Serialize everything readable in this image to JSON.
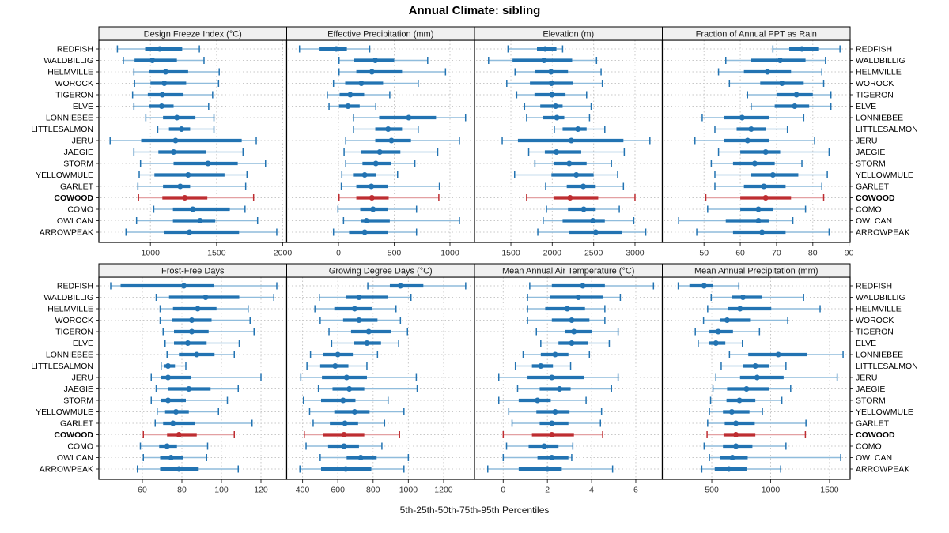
{
  "title": "Annual Climate: sibling",
  "footer": "5th-25th-50th-75th-95th Percentiles",
  "colors": {
    "blue": "#2273B2",
    "blue_light": "#8FBCDC",
    "red": "#BE2D31",
    "red_light": "#E3A0A2",
    "grid": "#C8C8C8",
    "strip_bg": "#F0F0F0",
    "border": "#000000",
    "tick": "#333333",
    "label": "#1A1A1A"
  },
  "chart_data": {
    "type": "trellis-dotplot",
    "percentile_labels": [
      "5th",
      "25th",
      "50th",
      "75th",
      "95th"
    ],
    "highlight_site": "COWOOD",
    "grid": "dotted",
    "sites": [
      "REDFISH",
      "WALDBILLIG",
      "HELMVILLE",
      "WOROCK",
      "TIGERON",
      "ELVE",
      "LONNIEBEE",
      "LITTLESALMON",
      "JERU",
      "JAEGIE",
      "STORM",
      "YELLOWMULE",
      "GARLET",
      "COWOOD",
      "COMO",
      "OWLCAN",
      "ARROWPEAK"
    ],
    "panels": [
      {
        "title": "Design Freeze Index (°C)",
        "row": 0,
        "col": 0,
        "xlim": [
          610,
          2030
        ],
        "ticks": [
          1000,
          1500,
          2000
        ],
        "values": [
          [
            750,
            960,
            1070,
            1240,
            1370
          ],
          [
            795,
            880,
            1015,
            1200,
            1405
          ],
          [
            875,
            990,
            1115,
            1285,
            1520
          ],
          [
            880,
            1000,
            1105,
            1270,
            1515
          ],
          [
            865,
            980,
            1090,
            1250,
            1470
          ],
          [
            875,
            990,
            1085,
            1175,
            1440
          ],
          [
            965,
            1095,
            1200,
            1340,
            1480
          ],
          [
            1055,
            1140,
            1235,
            1300,
            1480
          ],
          [
            695,
            930,
            1190,
            1690,
            1800
          ],
          [
            875,
            1060,
            1175,
            1420,
            1700
          ],
          [
            925,
            1175,
            1435,
            1660,
            1870
          ],
          [
            915,
            1030,
            1285,
            1560,
            1730
          ],
          [
            905,
            1095,
            1225,
            1300,
            1720
          ],
          [
            910,
            1090,
            1260,
            1430,
            1780
          ],
          [
            1025,
            1170,
            1320,
            1600,
            1715
          ],
          [
            895,
            1170,
            1375,
            1490,
            1810
          ],
          [
            815,
            1105,
            1295,
            1670,
            1955
          ]
        ]
      },
      {
        "title": "Effective Precipitation (mm)",
        "row": 0,
        "col": 1,
        "xlim": [
          -465,
          1220
        ],
        "ticks": [
          0,
          500,
          1000
        ],
        "values": [
          [
            -350,
            -170,
            -20,
            75,
            280
          ],
          [
            5,
            135,
            330,
            500,
            800
          ],
          [
            5,
            160,
            300,
            570,
            960
          ],
          [
            -45,
            60,
            205,
            400,
            715
          ],
          [
            -100,
            10,
            105,
            230,
            460
          ],
          [
            -85,
            5,
            85,
            190,
            335
          ],
          [
            135,
            365,
            630,
            875,
            1140
          ],
          [
            135,
            330,
            445,
            570,
            715
          ],
          [
            65,
            330,
            475,
            650,
            1085
          ],
          [
            50,
            200,
            370,
            555,
            890
          ],
          [
            65,
            215,
            335,
            475,
            685
          ],
          [
            30,
            130,
            235,
            340,
            530
          ],
          [
            25,
            160,
            295,
            445,
            905
          ],
          [
            5,
            160,
            300,
            450,
            900
          ],
          [
            -5,
            195,
            310,
            445,
            700
          ],
          [
            45,
            205,
            250,
            460,
            1085
          ],
          [
            -45,
            95,
            235,
            440,
            700
          ]
        ]
      },
      {
        "title": "Elevation (m)",
        "row": 0,
        "col": 2,
        "xlim": [
          1060,
          3330
        ],
        "ticks": [
          1500,
          2000,
          2500,
          3000
        ],
        "values": [
          [
            1465,
            1815,
            1915,
            2050,
            2125
          ],
          [
            1230,
            1520,
            1900,
            2240,
            2535
          ],
          [
            1550,
            1795,
            1985,
            2190,
            2590
          ],
          [
            1450,
            1730,
            1990,
            2250,
            2605
          ],
          [
            1570,
            1785,
            1995,
            2160,
            2415
          ],
          [
            1665,
            1855,
            2040,
            2125,
            2470
          ],
          [
            1690,
            1890,
            2055,
            2145,
            2450
          ],
          [
            2025,
            2125,
            2310,
            2415,
            2635
          ],
          [
            1395,
            1585,
            2230,
            2860,
            3180
          ],
          [
            1715,
            1910,
            2050,
            2350,
            2870
          ],
          [
            1790,
            2015,
            2205,
            2415,
            2715
          ],
          [
            1545,
            1990,
            2290,
            2500,
            2790
          ],
          [
            1920,
            2175,
            2375,
            2525,
            2860
          ],
          [
            1690,
            2015,
            2215,
            2555,
            3000
          ],
          [
            1930,
            2190,
            2380,
            2525,
            2810
          ],
          [
            1890,
            2125,
            2490,
            2635,
            2985
          ],
          [
            1825,
            2205,
            2525,
            2845,
            3130
          ]
        ]
      },
      {
        "title": "Fraction of Annual PPT as Rain",
        "row": 0,
        "col": 3,
        "xlim": [
          38.5,
          90.3
        ],
        "ticks": [
          50,
          60,
          70,
          80,
          90
        ],
        "values": [
          [
            69,
            73.5,
            77,
            81.5,
            87.5
          ],
          [
            56,
            63,
            71,
            78,
            83.5
          ],
          [
            54,
            61,
            67.5,
            74,
            82.5
          ],
          [
            57,
            65.5,
            71.5,
            77.5,
            83
          ],
          [
            62,
            70,
            75.5,
            80,
            85
          ],
          [
            63,
            69.5,
            75,
            79,
            85
          ],
          [
            49.5,
            55.5,
            60.5,
            68,
            77.5
          ],
          [
            53,
            59,
            63,
            67,
            73
          ],
          [
            47.5,
            55.5,
            62,
            68,
            80.5
          ],
          [
            54,
            60,
            67,
            71,
            84.5
          ],
          [
            52,
            58,
            64,
            69.5,
            77
          ],
          [
            53,
            63,
            69,
            76,
            84
          ],
          [
            53,
            61,
            66.5,
            72.5,
            82.5
          ],
          [
            50.5,
            60,
            67,
            74,
            83
          ],
          [
            51,
            60,
            65,
            69,
            78
          ],
          [
            43,
            56,
            65,
            68,
            74.5
          ],
          [
            48,
            58,
            66,
            72.5,
            84.5
          ]
        ]
      },
      {
        "title": "Frost-Free Days",
        "row": 1,
        "col": 0,
        "xlim": [
          38,
          133
        ],
        "ticks": [
          60,
          80,
          100,
          120
        ],
        "values": [
          [
            44,
            49,
            81,
            96,
            128
          ],
          [
            67,
            73.5,
            92,
            109,
            126.5
          ],
          [
            69,
            75.5,
            88,
            97.5,
            113.5
          ],
          [
            69,
            75,
            85,
            95,
            114.5
          ],
          [
            70.5,
            76,
            85,
            93.5,
            116.5
          ],
          [
            71.5,
            76,
            83,
            92.5,
            109
          ],
          [
            72.5,
            78.5,
            87.5,
            96.5,
            106.5
          ],
          [
            69.5,
            71,
            73,
            76.5,
            82
          ],
          [
            64.5,
            69.5,
            73,
            84.5,
            120
          ],
          [
            67,
            73,
            83.5,
            94.5,
            108.5
          ],
          [
            64.5,
            69.5,
            73,
            82,
            103
          ],
          [
            67.5,
            71.5,
            77,
            83.5,
            98.5
          ],
          [
            66.5,
            70.5,
            75.5,
            86.5,
            115.5
          ],
          [
            60.5,
            72.5,
            78.5,
            87.5,
            106.5
          ],
          [
            59,
            68.5,
            72.5,
            77.5,
            93
          ],
          [
            60.5,
            69,
            74.5,
            80.5,
            92.5
          ],
          [
            57.5,
            69,
            78.5,
            88.5,
            108.5
          ]
        ]
      },
      {
        "title": "Growing Degree Days (°C)",
        "row": 1,
        "col": 1,
        "xlim": [
          310,
          1375
        ],
        "ticks": [
          400,
          600,
          800,
          1000,
          1200
        ],
        "values": [
          [
            770,
            895,
            955,
            1085,
            1325
          ],
          [
            495,
            645,
            720,
            885,
            1015
          ],
          [
            470,
            580,
            695,
            795,
            930
          ],
          [
            500,
            630,
            720,
            825,
            955
          ],
          [
            550,
            675,
            775,
            900,
            995
          ],
          [
            565,
            690,
            765,
            845,
            945
          ],
          [
            445,
            515,
            600,
            685,
            825
          ],
          [
            425,
            500,
            585,
            660,
            765
          ],
          [
            390,
            510,
            650,
            765,
            1045
          ],
          [
            490,
            570,
            665,
            750,
            1050
          ],
          [
            405,
            505,
            630,
            700,
            885
          ],
          [
            440,
            580,
            695,
            780,
            975
          ],
          [
            460,
            555,
            640,
            715,
            865
          ],
          [
            410,
            515,
            635,
            750,
            950
          ],
          [
            420,
            545,
            635,
            720,
            850
          ],
          [
            500,
            650,
            730,
            820,
            1000
          ],
          [
            385,
            505,
            645,
            790,
            975
          ]
        ]
      },
      {
        "title": "Mean Annual Air Temperature (°C)",
        "row": 1,
        "col": 2,
        "xlim": [
          -1.3,
          7.2
        ],
        "ticks": [
          0,
          2,
          4,
          6
        ],
        "values": [
          [
            1.2,
            2.2,
            3.6,
            4.6,
            6.8
          ],
          [
            1.1,
            2.1,
            3.4,
            4.5,
            5.3
          ],
          [
            1.1,
            1.9,
            2.9,
            3.7,
            4.6
          ],
          [
            1.1,
            2.2,
            3.1,
            3.9,
            4.6
          ],
          [
            1.5,
            2.8,
            3.2,
            4.0,
            5.2
          ],
          [
            1.7,
            2.5,
            3.1,
            3.85,
            4.8
          ],
          [
            0.9,
            1.7,
            2.35,
            2.95,
            3.9
          ],
          [
            0.55,
            1.3,
            1.7,
            2.25,
            3.05
          ],
          [
            -0.2,
            1.1,
            2.2,
            3.65,
            5.2
          ],
          [
            0.65,
            1.65,
            2.55,
            3.05,
            4.9
          ],
          [
            -0.2,
            0.7,
            1.55,
            2.15,
            3.75
          ],
          [
            0.25,
            1.5,
            2.35,
            3.0,
            4.45
          ],
          [
            0.4,
            1.65,
            2.2,
            2.95,
            4.4
          ],
          [
            0.0,
            1.3,
            2.2,
            3.2,
            4.5
          ],
          [
            0.15,
            1.15,
            1.85,
            2.5,
            3.15
          ],
          [
            0.0,
            1.55,
            2.2,
            2.95,
            3.1
          ],
          [
            -0.7,
            0.7,
            2.0,
            2.65,
            4.95
          ]
        ]
      },
      {
        "title": "Mean Annual Precipitation (mm)",
        "row": 1,
        "col": 3,
        "xlim": [
          80,
          1675
        ],
        "ticks": [
          500,
          1000,
          1500
        ],
        "values": [
          [
            215,
            310,
            435,
            510,
            730
          ],
          [
            495,
            670,
            765,
            925,
            1280
          ],
          [
            465,
            640,
            740,
            1005,
            1420
          ],
          [
            430,
            570,
            630,
            825,
            1145
          ],
          [
            360,
            480,
            555,
            680,
            905
          ],
          [
            385,
            475,
            535,
            615,
            760
          ],
          [
            650,
            810,
            1065,
            1310,
            1615
          ],
          [
            580,
            765,
            870,
            990,
            1130
          ],
          [
            535,
            740,
            885,
            1110,
            1565
          ],
          [
            510,
            630,
            795,
            990,
            1170
          ],
          [
            490,
            625,
            735,
            870,
            1095
          ],
          [
            480,
            595,
            670,
            820,
            930
          ],
          [
            465,
            610,
            705,
            865,
            1300
          ],
          [
            460,
            600,
            705,
            870,
            1295
          ],
          [
            435,
            595,
            705,
            845,
            1130
          ],
          [
            480,
            570,
            675,
            805,
            1595
          ],
          [
            415,
            525,
            645,
            795,
            1085
          ]
        ]
      }
    ]
  }
}
